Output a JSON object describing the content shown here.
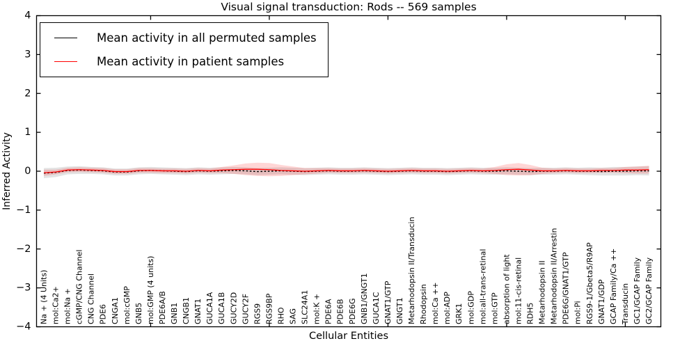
{
  "figure": {
    "title": "Visual signal transduction: Rods -- 569 samples",
    "xlabel": "Cellular Entities",
    "ylabel": "Inferred Activity"
  },
  "chart_data": {
    "type": "line",
    "title": "Visual signal transduction: Rods -- 569 samples",
    "xlabel": "Cellular Entities",
    "ylabel": "Inferred Activity",
    "ylim": [
      -4,
      4
    ],
    "yticks": [
      4,
      3,
      2,
      1,
      0,
      -1,
      -2,
      -3,
      -4
    ],
    "xtick_major_positions": [
      10,
      20,
      30,
      40,
      50
    ],
    "grid": false,
    "legend_position": "upper left",
    "colors": {
      "permuted": "#000000",
      "patient": "#ff0000",
      "permuted_band": "#cccccc",
      "patient_band": "#ff0000"
    },
    "categories": [
      "Na + (4 Units)",
      "mol:Ca2+",
      "mol:Na +",
      "cGMP/CNG Channel",
      "CNG Channel",
      "PDE6",
      "CNGA1",
      "mol:cGMP",
      "GNB5",
      "mol:GMP (4 units)",
      "PDE6A/B",
      "GNB1",
      "CNGB1",
      "GNAT1",
      "GUCA1A",
      "GUCA1B",
      "GUCY2D",
      "GUCY2F",
      "RGS9",
      "RGS9BP",
      "RHO",
      "SAG",
      "SLC24A1",
      "mol:K +",
      "PDE6A",
      "PDE6B",
      "PDE6G",
      "GNB1/GNGT1",
      "GUCA1C",
      "GNAT1/GTP",
      "GNGT1",
      "Metarhodopsin II/Transducin",
      "Rhodopsin",
      "mol:Ca ++",
      "mol:ADP",
      "GRK1",
      "mol:GDP",
      "mol:all-trans-retinal",
      "mol:GTP",
      "absorption of light",
      "mol:11-cis-retinal",
      "RDH5",
      "Metarhodopsin II",
      "Metarhodopsin II/Arrestin",
      "PDE6G/GNAT1/GTP",
      "mol:Pi",
      "RGS9-1/Gbeta5/R9AP",
      "GNAT1/GDP",
      "GCAP Family/Ca ++",
      "Transducin",
      "GC1/GCAP Family",
      "GC2/GCAP Family"
    ],
    "series": [
      {
        "name": "Mean activity in all permuted samples",
        "color": "#000000",
        "linestyle": "dotted",
        "values": [
          -0.05,
          -0.03,
          0.02,
          0.03,
          0.02,
          0.01,
          -0.02,
          -0.02,
          0.01,
          0.02,
          0.01,
          0,
          -0.01,
          0.01,
          0,
          0.01,
          0.02,
          0.01,
          -0.01,
          0,
          0.01,
          0,
          -0.01,
          0,
          0.01,
          0,
          0,
          0.01,
          0,
          -0.01,
          0,
          0.01,
          0,
          0,
          -0.01,
          0,
          0.01,
          0,
          0,
          0.01,
          0,
          -0.01,
          0,
          0,
          0.01,
          0,
          0,
          -0.01,
          0,
          0,
          0.01,
          0.01
        ]
      },
      {
        "name": "Mean activity in patient samples",
        "color": "#ff0000",
        "linestyle": "solid",
        "values": [
          -0.04,
          -0.02,
          0.03,
          0.04,
          0.03,
          0.02,
          -0.01,
          -0.01,
          0.02,
          0.02,
          0.01,
          0.01,
          0,
          0.02,
          0.01,
          0.03,
          0.04,
          0.05,
          0.05,
          0.04,
          0.02,
          0.01,
          0,
          0.01,
          0.02,
          0.01,
          0.01,
          0.02,
          0.01,
          0,
          0.01,
          0.02,
          0.01,
          0.01,
          0,
          0.01,
          0.02,
          0.01,
          0.02,
          0.04,
          0.05,
          0.03,
          0.01,
          0.01,
          0.02,
          0.01,
          0.01,
          0.02,
          0.02,
          0.03,
          0.03,
          0.04
        ]
      }
    ],
    "uncertainty_bands": [
      {
        "for_series": "Mean activity in all permuted samples",
        "color": "#cccccc",
        "opacity": 0.55,
        "half_widths": [
          0.13,
          0.12,
          0.1,
          0.1,
          0.09,
          0.09,
          0.09,
          0.09,
          0.09,
          0.09,
          0.09,
          0.09,
          0.09,
          0.09,
          0.09,
          0.09,
          0.09,
          0.09,
          0.09,
          0.09,
          0.09,
          0.09,
          0.09,
          0.09,
          0.09,
          0.09,
          0.09,
          0.09,
          0.09,
          0.09,
          0.09,
          0.09,
          0.09,
          0.09,
          0.09,
          0.09,
          0.09,
          0.09,
          0.09,
          0.09,
          0.09,
          0.09,
          0.09,
          0.09,
          0.09,
          0.09,
          0.1,
          0.1,
          0.11,
          0.11,
          0.11,
          0.12
        ]
      },
      {
        "for_series": "Mean activity in patient samples",
        "color": "#ff0000",
        "opacity": 0.16,
        "half_widths": [
          0.08,
          0.06,
          0.06,
          0.06,
          0.06,
          0.06,
          0.06,
          0.06,
          0.06,
          0.06,
          0.06,
          0.06,
          0.06,
          0.06,
          0.06,
          0.08,
          0.11,
          0.15,
          0.17,
          0.17,
          0.14,
          0.11,
          0.08,
          0.07,
          0.06,
          0.06,
          0.06,
          0.06,
          0.06,
          0.06,
          0.06,
          0.06,
          0.06,
          0.06,
          0.06,
          0.06,
          0.06,
          0.06,
          0.09,
          0.14,
          0.16,
          0.13,
          0.08,
          0.06,
          0.06,
          0.06,
          0.06,
          0.06,
          0.06,
          0.08,
          0.09,
          0.1
        ]
      }
    ]
  }
}
